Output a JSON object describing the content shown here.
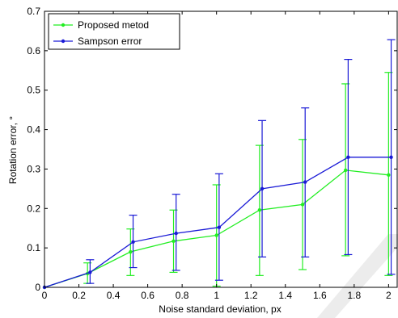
{
  "chart_data": {
    "type": "line",
    "title": "",
    "xlabel": "Noise standard deviation, px",
    "ylabel": "Rotation error, °",
    "xlim": [
      0,
      2.05
    ],
    "ylim": [
      0,
      0.7
    ],
    "xticks": [
      0,
      0.2,
      0.4,
      0.6,
      0.8,
      1,
      1.2,
      1.4,
      1.6,
      1.8,
      2
    ],
    "xtick_labels": [
      "0",
      "0.2",
      "0.4",
      "0.6",
      "0.8",
      "1",
      "1.2",
      "1.4",
      "1.6",
      "1.8",
      "2"
    ],
    "yticks": [
      0,
      0.1,
      0.2,
      0.3,
      0.4,
      0.5,
      0.6,
      0.7
    ],
    "ytick_labels": [
      "0",
      "0.1",
      "0.2",
      "0.3",
      "0.4",
      "0.5",
      "0.6",
      "0.7"
    ],
    "grid": false,
    "legend_position": "top-left",
    "series": [
      {
        "name": "Proposed metod",
        "color": "#22ee22",
        "x": [
          0,
          0.25,
          0.5,
          0.75,
          1,
          1.25,
          1.5,
          1.75,
          2
        ],
        "y": [
          0,
          0.035,
          0.09,
          0.117,
          0.132,
          0.196,
          0.21,
          0.297,
          0.285
        ],
        "err_low": [
          0,
          0.01,
          0.03,
          0.038,
          0.003,
          0.03,
          0.045,
          0.08,
          0.03
        ],
        "err_high": [
          0,
          0.062,
          0.148,
          0.196,
          0.26,
          0.36,
          0.375,
          0.516,
          0.545
        ]
      },
      {
        "name": "Sampson error",
        "color": "#1a1ad6",
        "x": [
          0,
          0.265,
          0.515,
          0.765,
          1.015,
          1.265,
          1.515,
          1.765,
          2.015
        ],
        "y": [
          0,
          0.038,
          0.115,
          0.137,
          0.152,
          0.25,
          0.267,
          0.33,
          0.33
        ],
        "err_low": [
          0,
          0.01,
          0.05,
          0.043,
          0.018,
          0.077,
          0.077,
          0.083,
          0.033
        ],
        "err_high": [
          0,
          0.07,
          0.183,
          0.236,
          0.288,
          0.423,
          0.455,
          0.578,
          0.628
        ]
      }
    ]
  }
}
